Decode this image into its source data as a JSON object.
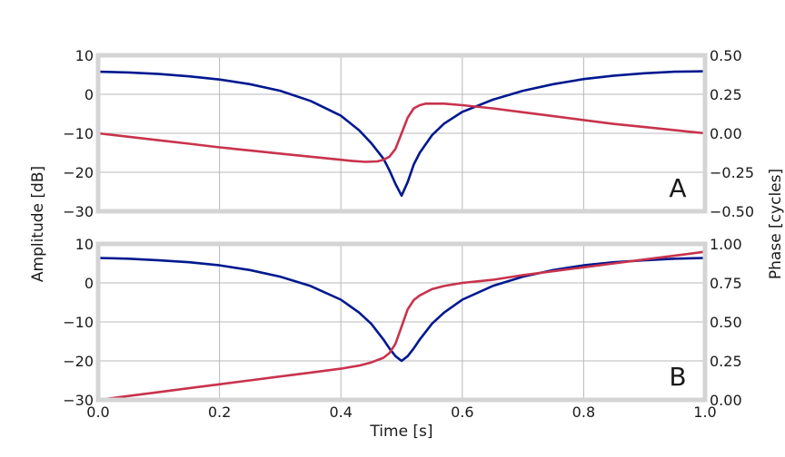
{
  "chart_data": [
    {
      "type": "line",
      "panel_label": "A",
      "xlim": [
        0,
        1
      ],
      "ylim_left": [
        -30,
        10
      ],
      "ylim_right": [
        -0.5,
        0.5
      ],
      "x_ticks": [
        "0.0",
        "0.2",
        "0.4",
        "0.6",
        "0.8",
        "1.0"
      ],
      "y_ticks_left": [
        "10",
        "0",
        "−10",
        "−20",
        "−30"
      ],
      "y_ticks_right": [
        "0.50",
        "0.25",
        "0.00",
        "−0.25",
        "−0.50"
      ],
      "grid": true,
      "series": [
        {
          "axis": "left",
          "color": "#00188f",
          "x": [
            0,
            0.05,
            0.1,
            0.15,
            0.2,
            0.25,
            0.3,
            0.35,
            0.4,
            0.43,
            0.45,
            0.47,
            0.48,
            0.49,
            0.5,
            0.51,
            0.52,
            0.53,
            0.55,
            0.57,
            0.6,
            0.65,
            0.7,
            0.75,
            0.8,
            0.85,
            0.9,
            0.95,
            1.0
          ],
          "y": [
            5.8,
            5.6,
            5.2,
            4.6,
            3.8,
            2.6,
            0.9,
            -1.7,
            -5.5,
            -9.2,
            -12.5,
            -16.5,
            -19.5,
            -23,
            -26,
            -22.5,
            -18,
            -15,
            -10.5,
            -7.5,
            -4.5,
            -1.4,
            0.9,
            2.6,
            3.9,
            4.8,
            5.4,
            5.8,
            5.9
          ]
        },
        {
          "axis": "right",
          "color": "#c8334d",
          "x": [
            0,
            0.05,
            0.1,
            0.15,
            0.2,
            0.25,
            0.3,
            0.35,
            0.4,
            0.42,
            0.44,
            0.46,
            0.47,
            0.48,
            0.49,
            0.5,
            0.51,
            0.52,
            0.53,
            0.54,
            0.55,
            0.57,
            0.6,
            0.65,
            0.7,
            0.75,
            0.8,
            0.85,
            0.9,
            0.95,
            1.0
          ],
          "y": [
            0.0,
            -0.022,
            -0.045,
            -0.067,
            -0.09,
            -0.11,
            -0.13,
            -0.15,
            -0.17,
            -0.178,
            -0.183,
            -0.18,
            -0.17,
            -0.15,
            -0.1,
            0.0,
            0.1,
            0.16,
            0.18,
            0.19,
            0.19,
            0.19,
            0.18,
            0.16,
            0.135,
            0.11,
            0.085,
            0.06,
            0.04,
            0.02,
            0.0
          ]
        }
      ]
    },
    {
      "type": "line",
      "panel_label": "B",
      "xlim": [
        0,
        1
      ],
      "ylim_left": [
        -30,
        10
      ],
      "ylim_right": [
        0,
        1
      ],
      "x_ticks": [
        "0.0",
        "0.2",
        "0.4",
        "0.6",
        "0.8",
        "1.0"
      ],
      "y_ticks_left": [
        "10",
        "0",
        "−10",
        "−20",
        "−30"
      ],
      "y_ticks_right": [
        "1.00",
        "0.75",
        "0.50",
        "0.25",
        "0.00"
      ],
      "grid": true,
      "series": [
        {
          "axis": "left",
          "color": "#00188f",
          "x": [
            0,
            0.05,
            0.1,
            0.15,
            0.2,
            0.25,
            0.3,
            0.35,
            0.4,
            0.43,
            0.45,
            0.47,
            0.48,
            0.49,
            0.5,
            0.51,
            0.52,
            0.53,
            0.55,
            0.57,
            0.6,
            0.65,
            0.7,
            0.75,
            0.8,
            0.85,
            0.9,
            0.95,
            1.0
          ],
          "y": [
            6.4,
            6.2,
            5.8,
            5.3,
            4.5,
            3.3,
            1.6,
            -0.8,
            -4.3,
            -7.6,
            -10.5,
            -14.5,
            -16.8,
            -18.8,
            -20,
            -18.8,
            -16.8,
            -14.5,
            -10.5,
            -7.6,
            -4.3,
            -0.8,
            1.6,
            3.3,
            4.5,
            5.3,
            5.8,
            6.2,
            6.4
          ]
        },
        {
          "axis": "right",
          "color": "#c8334d",
          "x": [
            0,
            0.05,
            0.1,
            0.15,
            0.2,
            0.25,
            0.3,
            0.35,
            0.4,
            0.43,
            0.45,
            0.47,
            0.48,
            0.49,
            0.5,
            0.51,
            0.52,
            0.53,
            0.55,
            0.57,
            0.6,
            0.65,
            0.7,
            0.75,
            0.8,
            0.85,
            0.9,
            0.95,
            1.0
          ],
          "y": [
            0.0,
            0.025,
            0.05,
            0.075,
            0.1,
            0.125,
            0.15,
            0.175,
            0.2,
            0.22,
            0.24,
            0.27,
            0.3,
            0.36,
            0.47,
            0.58,
            0.64,
            0.67,
            0.71,
            0.73,
            0.75,
            0.77,
            0.8,
            0.825,
            0.85,
            0.875,
            0.9,
            0.925,
            0.95
          ]
        }
      ]
    }
  ],
  "labels": {
    "xlabel": "Time [s]",
    "ylabel_left": "Amplitude [dB]",
    "ylabel_right": "Phase [cycles]"
  }
}
